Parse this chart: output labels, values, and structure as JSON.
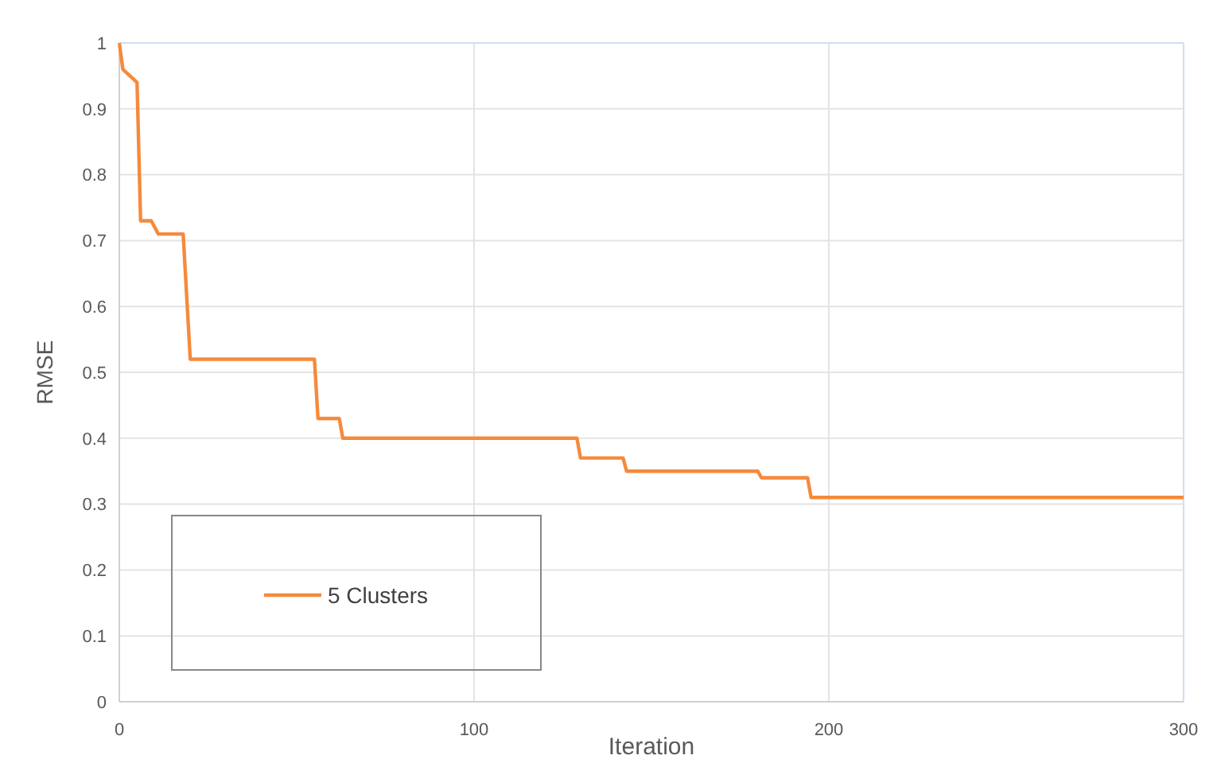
{
  "chart_data": {
    "type": "line",
    "xlabel": "Iteration",
    "ylabel": "RMSE",
    "xlim": [
      0,
      300
    ],
    "xticks": [
      0,
      100,
      200,
      300
    ],
    "ylim": [
      0,
      1
    ],
    "yticks": [
      0,
      0.1,
      0.2,
      0.3,
      0.4,
      0.5,
      0.6,
      0.7,
      0.8,
      0.9,
      1
    ],
    "grid": true,
    "legend": "bottom left",
    "marker": "none",
    "line_style": "solid",
    "series": [
      {
        "name": "5 Clusters",
        "color": "#f58a3c",
        "x": [
          0,
          1,
          3,
          5,
          6,
          9,
          11,
          18,
          20,
          55,
          56,
          62,
          63,
          129,
          130,
          142,
          143,
          180,
          181,
          194,
          195,
          300
        ],
        "values": [
          1.0,
          0.96,
          0.95,
          0.94,
          0.73,
          0.73,
          0.71,
          0.71,
          0.52,
          0.52,
          0.43,
          0.43,
          0.4,
          0.4,
          0.37,
          0.37,
          0.35,
          0.35,
          0.34,
          0.34,
          0.31,
          0.31
        ]
      }
    ]
  }
}
